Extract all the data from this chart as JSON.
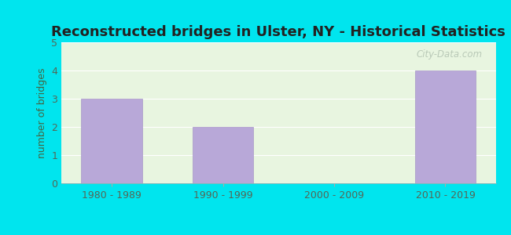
{
  "title": "Reconstructed bridges in Ulster, NY - Historical Statistics",
  "categories": [
    "1980 - 1989",
    "1990 - 1999",
    "2000 - 2009",
    "2010 - 2019"
  ],
  "values": [
    3,
    2,
    0,
    4
  ],
  "bar_color": "#b8a8d8",
  "bar_edge_color": "#a898c8",
  "ylabel": "number of bridges",
  "ylim": [
    0,
    5
  ],
  "yticks": [
    0,
    1,
    2,
    3,
    4,
    5
  ],
  "background_outer": "#00e5ee",
  "background_plot": "#e8f5e0",
  "title_fontsize": 13,
  "label_fontsize": 9,
  "tick_fontsize": 9,
  "tick_color": "#556655",
  "title_color": "#222222",
  "ylabel_color": "#446644",
  "watermark": "City-Data.com",
  "watermark_color": "#aabbaa",
  "grid_color": "#ffffff"
}
